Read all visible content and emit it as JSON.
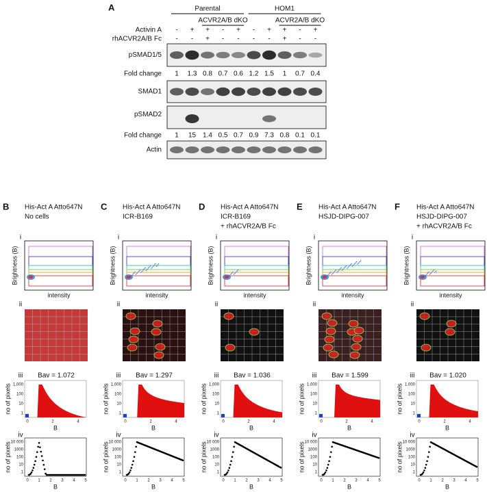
{
  "panel_a": {
    "letter": "A",
    "groups": [
      "Parental",
      "HOM1"
    ],
    "ko_labels": [
      "ACVR2A/B dKO",
      "ACVR2A/B dKO"
    ],
    "treatment_rows": [
      {
        "name": "Activin A",
        "signs": [
          "-",
          "+",
          "+",
          "-",
          "+",
          "-",
          "+",
          "+",
          "-",
          "+"
        ]
      },
      {
        "name": "rhACVR2A/B Fc",
        "signs": [
          "-",
          "-",
          "+",
          "-",
          "-",
          "-",
          "-",
          "+",
          "-",
          "-"
        ]
      }
    ],
    "blots": [
      "pSMAD1/5",
      "SMAD1",
      "pSMAD2",
      "Actin"
    ],
    "fold_label": "Fold change",
    "fold_psmad15": [
      "1",
      "1.3",
      "0.8",
      "0.7",
      "0.6",
      "1.2",
      "1.5",
      "1",
      "0.7",
      "0.4"
    ],
    "fold_psmad2": [
      "1",
      "15",
      "1.4",
      "0.5",
      "0.7",
      "0.9",
      "7.3",
      "0.8",
      "0.1",
      "0.1"
    ]
  },
  "numerals": [
    "i",
    "ii",
    "iii",
    "iv"
  ],
  "axis_labels": {
    "brightness": "Brightness (B)",
    "intensity": "intensity",
    "pixels": "no of pixels",
    "b": "B"
  },
  "ticks_iii": {
    "y": [
      "1,000",
      "100",
      "10",
      "1"
    ],
    "x": [
      "0",
      "2",
      "4"
    ]
  },
  "ticks_iv": {
    "y": [
      "10 000",
      "1000",
      "100",
      "10",
      "1"
    ],
    "x": [
      "0",
      "1",
      "2",
      "3",
      "4",
      "5"
    ]
  },
  "panels": [
    {
      "letter": "B",
      "title": [
        "His-Act A Atto647N",
        "No cells"
      ],
      "bav": "Bav = 1.072"
    },
    {
      "letter": "C",
      "title": [
        "His-Act A Atto647N",
        "ICR-B169"
      ],
      "bav": "Bav = 1.297"
    },
    {
      "letter": "D",
      "title": [
        "His-Act A Atto647N",
        "ICR-B169",
        "+ rhACVR2A/B Fc"
      ],
      "bav": "Bav = 1.036"
    },
    {
      "letter": "E",
      "title": [
        "His-Act A Atto647N",
        "HSJD-DIPG-007"
      ],
      "bav": "Bav = 1.599"
    },
    {
      "letter": "F",
      "title": [
        "His-Act A Atto647N",
        "HSJD-DIPG-007",
        "+ rhACVR2A/B Fc"
      ],
      "bav": "Bav = 1.020"
    }
  ]
}
